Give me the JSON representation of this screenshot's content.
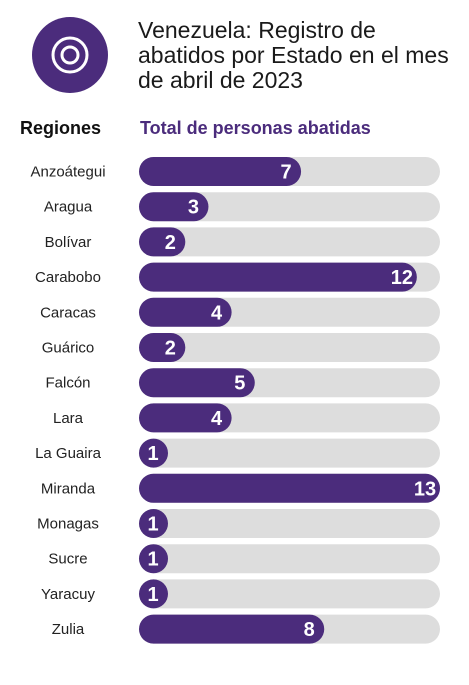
{
  "title": "Venezuela: Registro de abatidos por Estado en el mes de abril de 2023",
  "headers": {
    "regions": "Regiones",
    "total": "Total de personas abatidas"
  },
  "colors": {
    "bar": "#4b2c7c",
    "track": "#dddddd",
    "logo": "#4b2c7c"
  },
  "logo_icon": "target-icon",
  "chart_data": {
    "type": "bar",
    "orientation": "horizontal",
    "categories": [
      "Anzoátegui",
      "Aragua",
      "Bolívar",
      "Carabobo",
      "Caracas",
      "Guárico",
      "Falcón",
      "Lara",
      "La Guaira",
      "Miranda",
      "Monagas",
      "Sucre",
      "Yaracuy",
      "Zulia"
    ],
    "values": [
      7,
      3,
      2,
      12,
      4,
      2,
      5,
      4,
      1,
      13,
      1,
      1,
      1,
      8
    ],
    "xlim": [
      0,
      13
    ],
    "title": "Venezuela: Registro de abatidos por Estado en el mes de abril de 2023",
    "xlabel": "Total de personas abatidas",
    "ylabel": "Regiones",
    "grid": false
  }
}
